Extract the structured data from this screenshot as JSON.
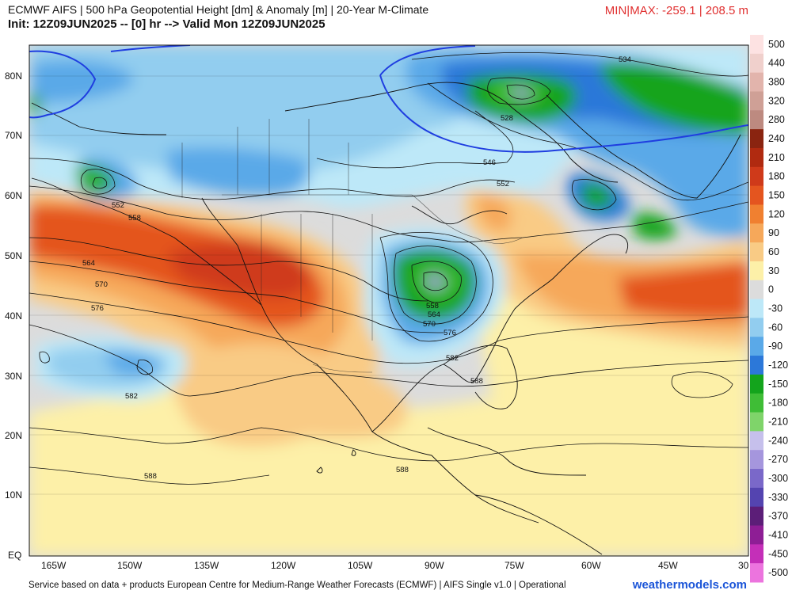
{
  "header": {
    "title": "ECMWF AIFS | 500 hPa Geopotential Height [dm] & Anomaly [m] | 20-Year M-Climate",
    "init": "Init: 12Z09JUN2025 -- [0] hr --> Valid Mon 12Z09JUN2025",
    "minmax": "MIN|MAX: -259.1 | 208.5 m"
  },
  "footer": {
    "credit": "Service based on data + products European Centre for Medium-Range Weather Forecasts (ECMWF) | AIFS Single v1.0 | Operational",
    "site": "weathermodels.com"
  },
  "axes": {
    "lat_labels": [
      "80N",
      "70N",
      "60N",
      "50N",
      "40N",
      "30N",
      "20N",
      "10N",
      "EQ"
    ],
    "lon_labels": [
      "165W",
      "150W",
      "135W",
      "120W",
      "105W",
      "90W",
      "75W",
      "60W",
      "45W",
      "30"
    ]
  },
  "colorbar": {
    "labels": [
      "500",
      "440",
      "380",
      "320",
      "280",
      "240",
      "210",
      "180",
      "150",
      "120",
      "90",
      "60",
      "30",
      "0",
      "-30",
      "-60",
      "-90",
      "-120",
      "-150",
      "-180",
      "-210",
      "-240",
      "-270",
      "-300",
      "-330",
      "-370",
      "-410",
      "-450",
      "-500"
    ],
    "colors": [
      "#fde2e2",
      "#f0d0cc",
      "#e2b4ac",
      "#cfa096",
      "#bd8a80",
      "#8a2410",
      "#b02a10",
      "#cf3a1a",
      "#e4551f",
      "#f08030",
      "#f6a85a",
      "#f9cb85",
      "#fdf0a8",
      "#dcdcdc",
      "#bde8f8",
      "#92cdef",
      "#5aa9e8",
      "#2c78d9",
      "#13a41c",
      "#3fbd36",
      "#7fd46a",
      "#c6c0ec",
      "#a596dd",
      "#7a68c9",
      "#5444b0",
      "#5c1e78",
      "#8e1e95",
      "#c42fb8",
      "#ec74de"
    ]
  },
  "contours": [
    {
      "label": "534"
    },
    {
      "label": "528"
    },
    {
      "label": "546"
    },
    {
      "label": "552"
    },
    {
      "label": "552"
    },
    {
      "label": "558"
    },
    {
      "label": "564"
    },
    {
      "label": "570"
    },
    {
      "label": "576"
    },
    {
      "label": "582"
    },
    {
      "label": "588"
    },
    {
      "label": "558"
    },
    {
      "label": "564"
    },
    {
      "label": "570"
    },
    {
      "label": "576"
    },
    {
      "label": "582"
    },
    {
      "label": "588"
    },
    {
      "label": "588"
    }
  ]
}
